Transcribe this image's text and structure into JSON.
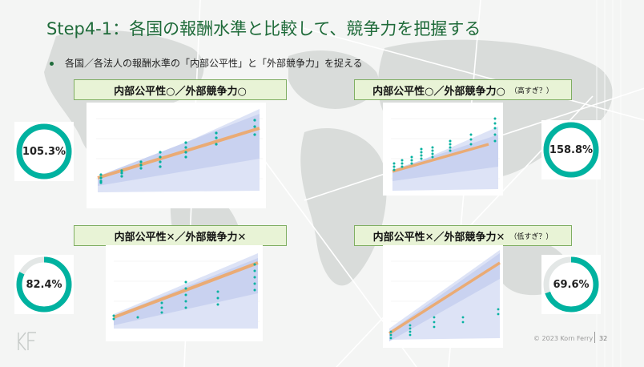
{
  "slide": {
    "title": "Step4-1：各国の報酬水準と比較して、競争力を把握する",
    "bullet": "各国／各法人の報酬水準の「内部公平性」と「外部競争力」を捉える",
    "copyright": "© 2023 Korn Ferry",
    "page_number": "32"
  },
  "colors": {
    "accent": "#00b2a0",
    "title": "#1f6b3a",
    "trend": "#f0a560",
    "band": "#c9d2f0"
  },
  "quadrants": [
    {
      "label": "内部公平性○／外部競争力○",
      "note": "",
      "gauge_value": "105.3%",
      "gauge_fraction": 1.0
    },
    {
      "label": "内部公平性○／外部競争力○",
      "note": "（高すぎ？）",
      "gauge_value": "158.8%",
      "gauge_fraction": 1.0
    },
    {
      "label": "内部公平性✕／外部競争力✕",
      "note": "",
      "gauge_value": "82.4%",
      "gauge_fraction": 0.824
    },
    {
      "label": "内部公平性✕／外部競争力✕",
      "note": "（低すぎ？）",
      "gauge_value": "69.6%",
      "gauge_fraction": 0.696
    }
  ],
  "chart_data": [
    {
      "type": "scatter",
      "title": "",
      "xlabel": "",
      "ylabel": ""
    },
    {
      "type": "scatter",
      "title": "",
      "xlabel": "",
      "ylabel": ""
    },
    {
      "type": "scatter",
      "title": "",
      "xlabel": "",
      "ylabel": ""
    },
    {
      "type": "scatter",
      "title": "",
      "xlabel": "",
      "ylabel": ""
    }
  ]
}
